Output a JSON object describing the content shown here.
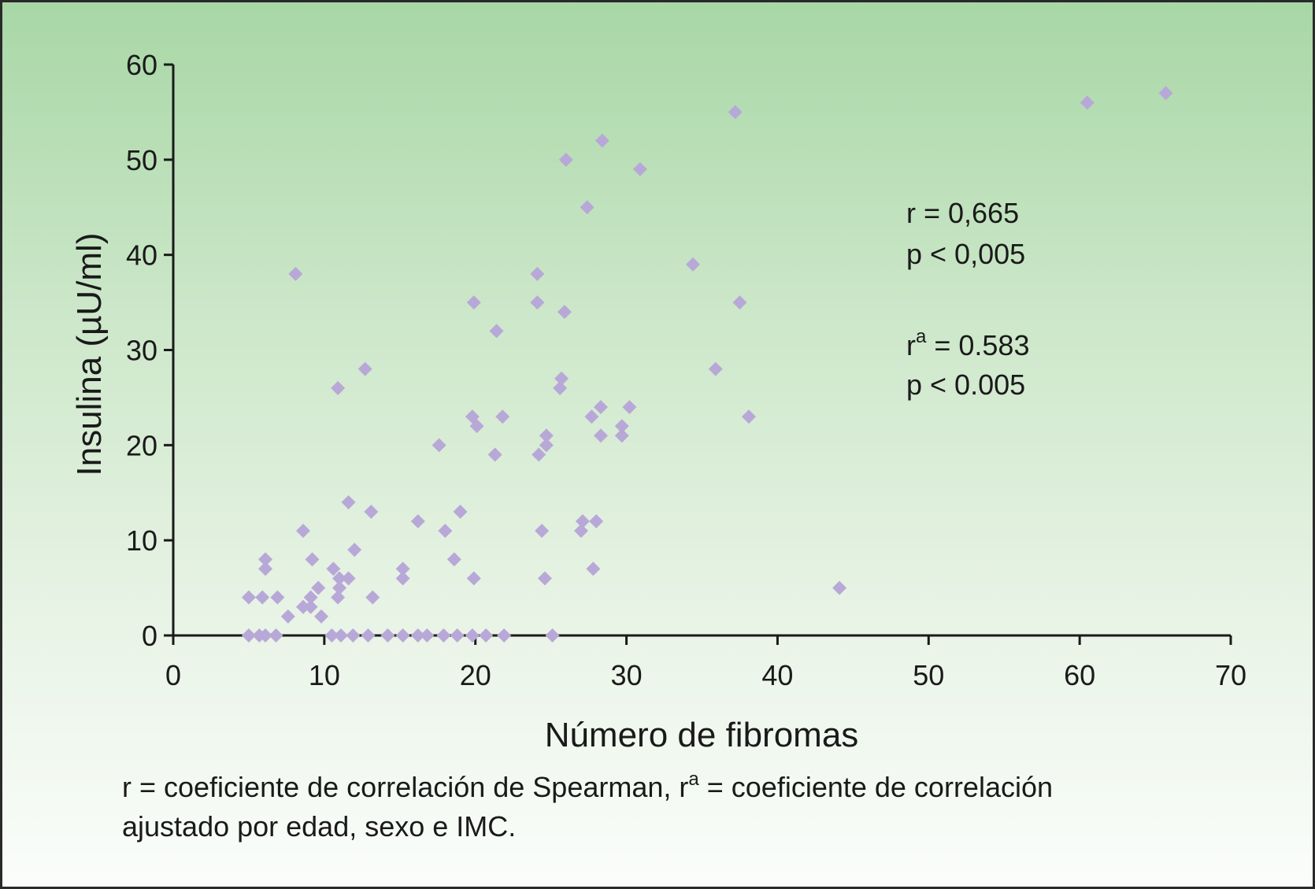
{
  "chart_data": {
    "type": "scatter",
    "xlabel": "Número de fibromas",
    "ylabel": "Insulina (µU/ml)",
    "xlim": [
      0,
      70
    ],
    "ylim": [
      0,
      60
    ],
    "xticks": [
      "0",
      "10",
      "20",
      "30",
      "40",
      "50",
      "60",
      "70"
    ],
    "yticks": [
      "0",
      "10",
      "20",
      "30",
      "40",
      "50",
      "60"
    ],
    "grid": false,
    "marker": "diamond",
    "marker_color": "#b8a8d8",
    "series": [
      {
        "points": [
          [
            5,
            0
          ],
          [
            5.7,
            0
          ],
          [
            6.1,
            0
          ],
          [
            6.8,
            0
          ],
          [
            10.5,
            0
          ],
          [
            11.1,
            0
          ],
          [
            11.9,
            0
          ],
          [
            12.9,
            0
          ],
          [
            14.2,
            0
          ],
          [
            15.2,
            0
          ],
          [
            16.2,
            0
          ],
          [
            16.8,
            0
          ],
          [
            17.9,
            0
          ],
          [
            18.8,
            0
          ],
          [
            19.8,
            0
          ],
          [
            20.7,
            0
          ],
          [
            21.9,
            0
          ],
          [
            25.1,
            0
          ],
          [
            5,
            4
          ],
          [
            5.9,
            4
          ],
          [
            6.1,
            8
          ],
          [
            6.1,
            7
          ],
          [
            6.9,
            4
          ],
          [
            7.6,
            2
          ],
          [
            8.1,
            38
          ],
          [
            8.6,
            11
          ],
          [
            8.6,
            3
          ],
          [
            9.1,
            4
          ],
          [
            9.2,
            8
          ],
          [
            9.1,
            3
          ],
          [
            9.6,
            5
          ],
          [
            9.8,
            2
          ],
          [
            10.6,
            7
          ],
          [
            10.9,
            26
          ],
          [
            10.9,
            4
          ],
          [
            11,
            6
          ],
          [
            11,
            5
          ],
          [
            11.6,
            6
          ],
          [
            11.6,
            14
          ],
          [
            12,
            9
          ],
          [
            12.7,
            28
          ],
          [
            13.1,
            13
          ],
          [
            13.2,
            4
          ],
          [
            15.2,
            7
          ],
          [
            15.2,
            6
          ],
          [
            16.2,
            12
          ],
          [
            17.6,
            20
          ],
          [
            18,
            11
          ],
          [
            18.6,
            8
          ],
          [
            19,
            13
          ],
          [
            19.8,
            23
          ],
          [
            19.9,
            35
          ],
          [
            19.9,
            6
          ],
          [
            20.1,
            22
          ],
          [
            21.3,
            19
          ],
          [
            21.4,
            32
          ],
          [
            21.8,
            23
          ],
          [
            24.1,
            38
          ],
          [
            24.1,
            35
          ],
          [
            24.2,
            19
          ],
          [
            24.4,
            11
          ],
          [
            24.6,
            6
          ],
          [
            24.7,
            20
          ],
          [
            24.7,
            21
          ],
          [
            25.6,
            26
          ],
          [
            25.7,
            27
          ],
          [
            25.9,
            34
          ],
          [
            26,
            50
          ],
          [
            27.1,
            12
          ],
          [
            27,
            11
          ],
          [
            27.4,
            45
          ],
          [
            27.7,
            23
          ],
          [
            27.8,
            7
          ],
          [
            28,
            12
          ],
          [
            28.3,
            21
          ],
          [
            28.3,
            24
          ],
          [
            28.4,
            52
          ],
          [
            29.7,
            22
          ],
          [
            29.7,
            21
          ],
          [
            30.2,
            24
          ],
          [
            30.9,
            49
          ],
          [
            34.4,
            39
          ],
          [
            35.9,
            28
          ],
          [
            37.2,
            55
          ],
          [
            37.5,
            35
          ],
          [
            38.1,
            23
          ],
          [
            44.1,
            5
          ],
          [
            60.5,
            56
          ],
          [
            65.7,
            57
          ]
        ]
      }
    ],
    "annotations": [
      {
        "line1": "r = 0,665",
        "line2": "p < 0,005"
      },
      {
        "line1_main": "r",
        "line1_sup": "a",
        "line1_rest": " = 0.583",
        "line2": "p < 0.005"
      }
    ]
  },
  "footnote": {
    "part1": "r = coeficiente de correlación de Spearman, r",
    "sup": "a",
    "part2": " = coeficiente de correlación",
    "line2": "ajustado por edad, sexo e IMC."
  }
}
